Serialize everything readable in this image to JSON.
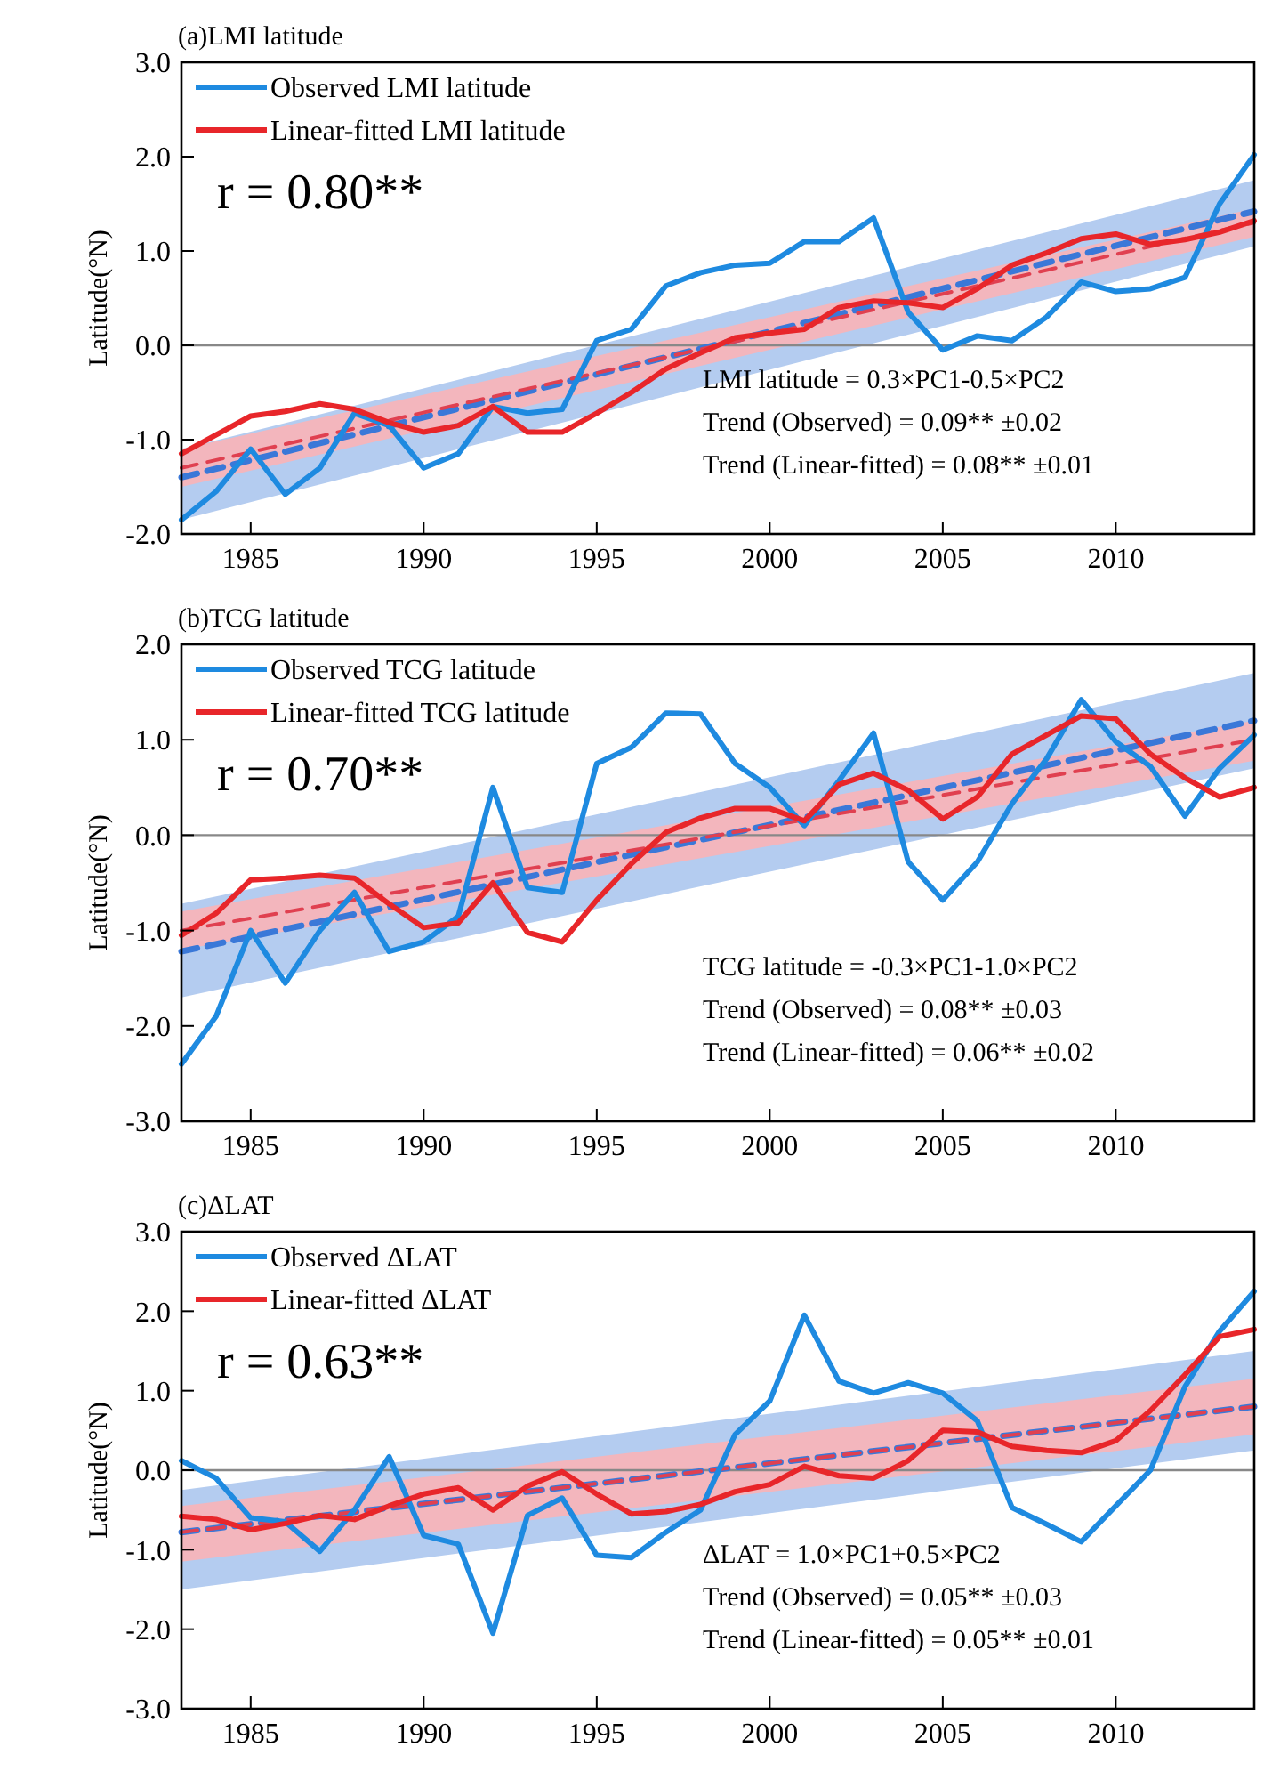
{
  "chart_data": [
    {
      "type": "line",
      "title": "(a)LMI latitude",
      "ylabel": "Latitude(°N)",
      "legend": "top left",
      "grid": false,
      "x": [
        1983,
        1984,
        1985,
        1986,
        1987,
        1988,
        1989,
        1990,
        1991,
        1992,
        1993,
        1994,
        1995,
        1996,
        1997,
        1998,
        1999,
        2000,
        2001,
        2002,
        2003,
        2004,
        2005,
        2006,
        2007,
        2008,
        2009,
        2010,
        2011,
        2012,
        2013,
        2014
      ],
      "xlim": [
        1983,
        2014
      ],
      "xticks": [
        1985,
        1990,
        1995,
        2000,
        2005,
        2010
      ],
      "ylim": [
        -2,
        3
      ],
      "yticks": [
        {
          "value": -2,
          "label": "-2.0"
        },
        {
          "value": -1,
          "label": "-1.0"
        },
        {
          "value": 0,
          "label": "0.0"
        },
        {
          "value": 1,
          "label": "1.0"
        },
        {
          "value": 2,
          "label": "2.0"
        },
        {
          "value": 3,
          "label": "3.0"
        }
      ],
      "ref_lines": [
        {
          "axis": "y",
          "value": 0,
          "color": "#888888"
        }
      ],
      "series": [
        {
          "name": "Observed LMI latitude",
          "color": "#1e8ae0",
          "values": [
            -1.85,
            -1.55,
            -1.1,
            -1.58,
            -1.3,
            -0.72,
            -0.85,
            -1.3,
            -1.15,
            -0.65,
            -0.72,
            -0.68,
            0.05,
            0.17,
            0.63,
            0.77,
            0.85,
            0.87,
            1.1,
            1.1,
            1.35,
            0.35,
            -0.05,
            0.1,
            0.05,
            0.3,
            0.67,
            0.57,
            0.6,
            0.72,
            1.5,
            2.02
          ]
        },
        {
          "name": "Linear-fitted LMI latitude",
          "color": "#e8262a",
          "values": [
            -1.15,
            -0.95,
            -0.75,
            -0.7,
            -0.62,
            -0.68,
            -0.82,
            -0.92,
            -0.85,
            -0.65,
            -0.92,
            -0.92,
            -0.72,
            -0.5,
            -0.25,
            -0.08,
            0.08,
            0.13,
            0.17,
            0.4,
            0.47,
            0.45,
            0.4,
            0.6,
            0.85,
            0.98,
            1.13,
            1.18,
            1.07,
            1.12,
            1.2,
            1.32
          ]
        },
        {
          "type": "line",
          "color": "#3a78d8",
          "line_style": "dashed",
          "values": [
            -1.4,
            null,
            null,
            null,
            null,
            null,
            null,
            null,
            null,
            null,
            null,
            null,
            null,
            null,
            null,
            null,
            null,
            null,
            null,
            null,
            null,
            null,
            null,
            null,
            null,
            null,
            null,
            null,
            null,
            null,
            null,
            1.42
          ],
          "lower": [
            -1.85,
            null,
            null,
            null,
            null,
            null,
            null,
            null,
            null,
            null,
            null,
            null,
            null,
            null,
            null,
            null,
            null,
            null,
            null,
            null,
            null,
            null,
            null,
            null,
            null,
            null,
            null,
            null,
            null,
            null,
            null,
            1.05
          ],
          "upper": [
            -1.1,
            null,
            null,
            null,
            null,
            null,
            null,
            null,
            null,
            null,
            null,
            null,
            null,
            null,
            null,
            null,
            null,
            null,
            null,
            null,
            null,
            null,
            null,
            null,
            null,
            null,
            null,
            null,
            null,
            null,
            null,
            1.75
          ]
        },
        {
          "type": "line",
          "color": "#e04050",
          "line_style": "dashed",
          "values": [
            -1.3,
            null,
            null,
            null,
            null,
            null,
            null,
            null,
            null,
            null,
            null,
            null,
            null,
            null,
            null,
            null,
            null,
            null,
            null,
            null,
            null,
            null,
            null,
            null,
            null,
            null,
            null,
            null,
            null,
            null,
            null,
            1.3
          ],
          "lower": [
            -1.5,
            null,
            null,
            null,
            null,
            null,
            null,
            null,
            null,
            null,
            null,
            null,
            null,
            null,
            null,
            null,
            null,
            null,
            null,
            null,
            null,
            null,
            null,
            null,
            null,
            null,
            null,
            null,
            null,
            null,
            null,
            1.15
          ],
          "upper": [
            -1.1,
            null,
            null,
            null,
            null,
            null,
            null,
            null,
            null,
            null,
            null,
            null,
            null,
            null,
            null,
            null,
            null,
            null,
            null,
            null,
            null,
            null,
            null,
            null,
            null,
            null,
            null,
            null,
            null,
            null,
            null,
            1.45
          ]
        }
      ],
      "annotations": [
        "r = 0.80**",
        "LMI latitude = 0.3×PC1-0.5×PC2",
        "Trend (Observed) = 0.09** ±0.02",
        "Trend (Linear-fitted) = 0.08** ±0.01"
      ]
    },
    {
      "type": "line",
      "title": "(b)TCG latitude",
      "ylabel": "Latitude(°N)",
      "legend": "top left",
      "grid": false,
      "x": [
        1983,
        1984,
        1985,
        1986,
        1987,
        1988,
        1989,
        1990,
        1991,
        1992,
        1993,
        1994,
        1995,
        1996,
        1997,
        1998,
        1999,
        2000,
        2001,
        2002,
        2003,
        2004,
        2005,
        2006,
        2007,
        2008,
        2009,
        2010,
        2011,
        2012,
        2013,
        2014
      ],
      "xlim": [
        1983,
        2014
      ],
      "xticks": [
        1985,
        1990,
        1995,
        2000,
        2005,
        2010
      ],
      "ylim": [
        -3,
        2
      ],
      "yticks": [
        {
          "value": -3,
          "label": "-3.0"
        },
        {
          "value": -2,
          "label": "-2.0"
        },
        {
          "value": -1,
          "label": "-1.0"
        },
        {
          "value": 0,
          "label": "0.0"
        },
        {
          "value": 1,
          "label": "1.0"
        },
        {
          "value": 2,
          "label": "2.0"
        }
      ],
      "ref_lines": [
        {
          "axis": "y",
          "value": 0,
          "color": "#888888"
        }
      ],
      "series": [
        {
          "name": "Observed TCG latitude",
          "color": "#1e8ae0",
          "values": [
            -2.4,
            -1.9,
            -1.0,
            -1.55,
            -1.0,
            -0.6,
            -1.22,
            -1.12,
            -0.85,
            0.5,
            -0.55,
            -0.6,
            0.75,
            0.92,
            1.28,
            1.27,
            0.75,
            0.5,
            0.1,
            0.57,
            1.07,
            -0.28,
            -0.68,
            -0.28,
            0.33,
            0.8,
            1.42,
            0.98,
            0.72,
            0.2,
            0.7,
            1.05
          ]
        },
        {
          "name": "Linear-fitted TCG latitude",
          "color": "#e8262a",
          "values": [
            -1.05,
            -0.82,
            -0.47,
            -0.45,
            -0.42,
            -0.45,
            -0.72,
            -0.97,
            -0.92,
            -0.5,
            -1.02,
            -1.12,
            -0.68,
            -0.3,
            0.03,
            0.18,
            0.28,
            0.28,
            0.15,
            0.53,
            0.65,
            0.47,
            0.17,
            0.4,
            0.85,
            1.05,
            1.25,
            1.22,
            0.85,
            0.6,
            0.4,
            0.5
          ]
        },
        {
          "type": "line",
          "color": "#3a78d8",
          "line_style": "dashed",
          "values": [
            -1.22,
            null,
            null,
            null,
            null,
            null,
            null,
            null,
            null,
            null,
            null,
            null,
            null,
            null,
            null,
            null,
            null,
            null,
            null,
            null,
            null,
            null,
            null,
            null,
            null,
            null,
            null,
            null,
            null,
            null,
            null,
            1.2
          ],
          "lower": [
            -1.7,
            null,
            null,
            null,
            null,
            null,
            null,
            null,
            null,
            null,
            null,
            null,
            null,
            null,
            null,
            null,
            null,
            null,
            null,
            null,
            null,
            null,
            null,
            null,
            null,
            null,
            null,
            null,
            null,
            null,
            null,
            0.7
          ],
          "upper": [
            -0.72,
            null,
            null,
            null,
            null,
            null,
            null,
            null,
            null,
            null,
            null,
            null,
            null,
            null,
            null,
            null,
            null,
            null,
            null,
            null,
            null,
            null,
            null,
            null,
            null,
            null,
            null,
            null,
            null,
            null,
            null,
            1.7
          ]
        },
        {
          "type": "line",
          "color": "#e04050",
          "line_style": "dashed",
          "values": [
            -1.0,
            null,
            null,
            null,
            null,
            null,
            null,
            null,
            null,
            null,
            null,
            null,
            null,
            null,
            null,
            null,
            null,
            null,
            null,
            null,
            null,
            null,
            null,
            null,
            null,
            null,
            null,
            null,
            null,
            null,
            null,
            1.0
          ],
          "lower": [
            -1.2,
            null,
            null,
            null,
            null,
            null,
            null,
            null,
            null,
            null,
            null,
            null,
            null,
            null,
            null,
            null,
            null,
            null,
            null,
            null,
            null,
            null,
            null,
            null,
            null,
            null,
            null,
            null,
            null,
            null,
            null,
            0.78
          ],
          "upper": [
            -0.8,
            null,
            null,
            null,
            null,
            null,
            null,
            null,
            null,
            null,
            null,
            null,
            null,
            null,
            null,
            null,
            null,
            null,
            null,
            null,
            null,
            null,
            null,
            null,
            null,
            null,
            null,
            null,
            null,
            null,
            null,
            1.2
          ]
        }
      ],
      "annotations": [
        "r = 0.70**",
        "TCG latitude = -0.3×PC1-1.0×PC2",
        "Trend (Observed) = 0.08** ±0.03",
        "Trend (Linear-fitted) = 0.06** ±0.02"
      ]
    },
    {
      "type": "line",
      "title": "(c)ΔLAT",
      "ylabel": "Latitude(°N)",
      "legend": "top left",
      "grid": false,
      "x": [
        1983,
        1984,
        1985,
        1986,
        1987,
        1988,
        1989,
        1990,
        1991,
        1992,
        1993,
        1994,
        1995,
        1996,
        1997,
        1998,
        1999,
        2000,
        2001,
        2002,
        2003,
        2004,
        2005,
        2006,
        2007,
        2008,
        2009,
        2010,
        2011,
        2012,
        2013,
        2014
      ],
      "xlim": [
        1983,
        2014
      ],
      "xticks": [
        1985,
        1990,
        1995,
        2000,
        2005,
        2010
      ],
      "ylim": [
        -3,
        3
      ],
      "yticks": [
        {
          "value": -3,
          "label": "-3.0"
        },
        {
          "value": -2,
          "label": "-2.0"
        },
        {
          "value": -1,
          "label": "-1.0"
        },
        {
          "value": 0,
          "label": "0.0"
        },
        {
          "value": 1,
          "label": "1.0"
        },
        {
          "value": 2,
          "label": "2.0"
        },
        {
          "value": 3,
          "label": "3.0"
        }
      ],
      "ref_lines": [
        {
          "axis": "y",
          "value": 0,
          "color": "#888888"
        }
      ],
      "series": [
        {
          "name": "Observed ΔLAT",
          "color": "#1e8ae0",
          "values": [
            0.12,
            -0.1,
            -0.6,
            -0.65,
            -1.02,
            -0.5,
            0.17,
            -0.82,
            -0.93,
            -2.05,
            -0.57,
            -0.35,
            -1.07,
            -1.1,
            -0.78,
            -0.5,
            0.45,
            0.87,
            1.95,
            1.12,
            0.97,
            1.1,
            0.97,
            0.62,
            -0.47,
            -0.68,
            -0.9,
            -0.45,
            0.0,
            1.05,
            1.75,
            2.25
          ]
        },
        {
          "name": "Linear-fitted ΔLAT",
          "color": "#e8262a",
          "values": [
            -0.58,
            -0.62,
            -0.75,
            -0.67,
            -0.57,
            -0.62,
            -0.45,
            -0.3,
            -0.22,
            -0.5,
            -0.2,
            -0.02,
            -0.3,
            -0.55,
            -0.52,
            -0.43,
            -0.27,
            -0.18,
            0.05,
            -0.07,
            -0.1,
            0.12,
            0.5,
            0.48,
            0.3,
            0.25,
            0.22,
            0.37,
            0.75,
            1.2,
            1.68,
            1.77
          ]
        },
        {
          "type": "line",
          "color": "#3a78d8",
          "line_style": "dashed",
          "values": [
            -0.78,
            null,
            null,
            null,
            null,
            null,
            null,
            null,
            null,
            null,
            null,
            null,
            null,
            null,
            null,
            null,
            null,
            null,
            null,
            null,
            null,
            null,
            null,
            null,
            null,
            null,
            null,
            null,
            null,
            null,
            null,
            0.8
          ],
          "lower": [
            -1.5,
            null,
            null,
            null,
            null,
            null,
            null,
            null,
            null,
            null,
            null,
            null,
            null,
            null,
            null,
            null,
            null,
            null,
            null,
            null,
            null,
            null,
            null,
            null,
            null,
            null,
            null,
            null,
            null,
            null,
            null,
            0.25
          ],
          "upper": [
            -0.25,
            null,
            null,
            null,
            null,
            null,
            null,
            null,
            null,
            null,
            null,
            null,
            null,
            null,
            null,
            null,
            null,
            null,
            null,
            null,
            null,
            null,
            null,
            null,
            null,
            null,
            null,
            null,
            null,
            null,
            null,
            1.5
          ]
        },
        {
          "type": "line",
          "color": "#e04050",
          "line_style": "dashed",
          "values": [
            -0.78,
            null,
            null,
            null,
            null,
            null,
            null,
            null,
            null,
            null,
            null,
            null,
            null,
            null,
            null,
            null,
            null,
            null,
            null,
            null,
            null,
            null,
            null,
            null,
            null,
            null,
            null,
            null,
            null,
            null,
            null,
            0.8
          ],
          "lower": [
            -1.15,
            null,
            null,
            null,
            null,
            null,
            null,
            null,
            null,
            null,
            null,
            null,
            null,
            null,
            null,
            null,
            null,
            null,
            null,
            null,
            null,
            null,
            null,
            null,
            null,
            null,
            null,
            null,
            null,
            null,
            null,
            0.45
          ],
          "upper": [
            -0.45,
            null,
            null,
            null,
            null,
            null,
            null,
            null,
            null,
            null,
            null,
            null,
            null,
            null,
            null,
            null,
            null,
            null,
            null,
            null,
            null,
            null,
            null,
            null,
            null,
            null,
            null,
            null,
            null,
            null,
            null,
            1.15
          ]
        }
      ],
      "annotations": [
        "r = 0.63**",
        "ΔLAT = 1.0×PC1+0.5×PC2",
        "Trend (Observed) = 0.05** ±0.03",
        "Trend (Linear-fitted) = 0.05** ±0.01"
      ]
    }
  ]
}
